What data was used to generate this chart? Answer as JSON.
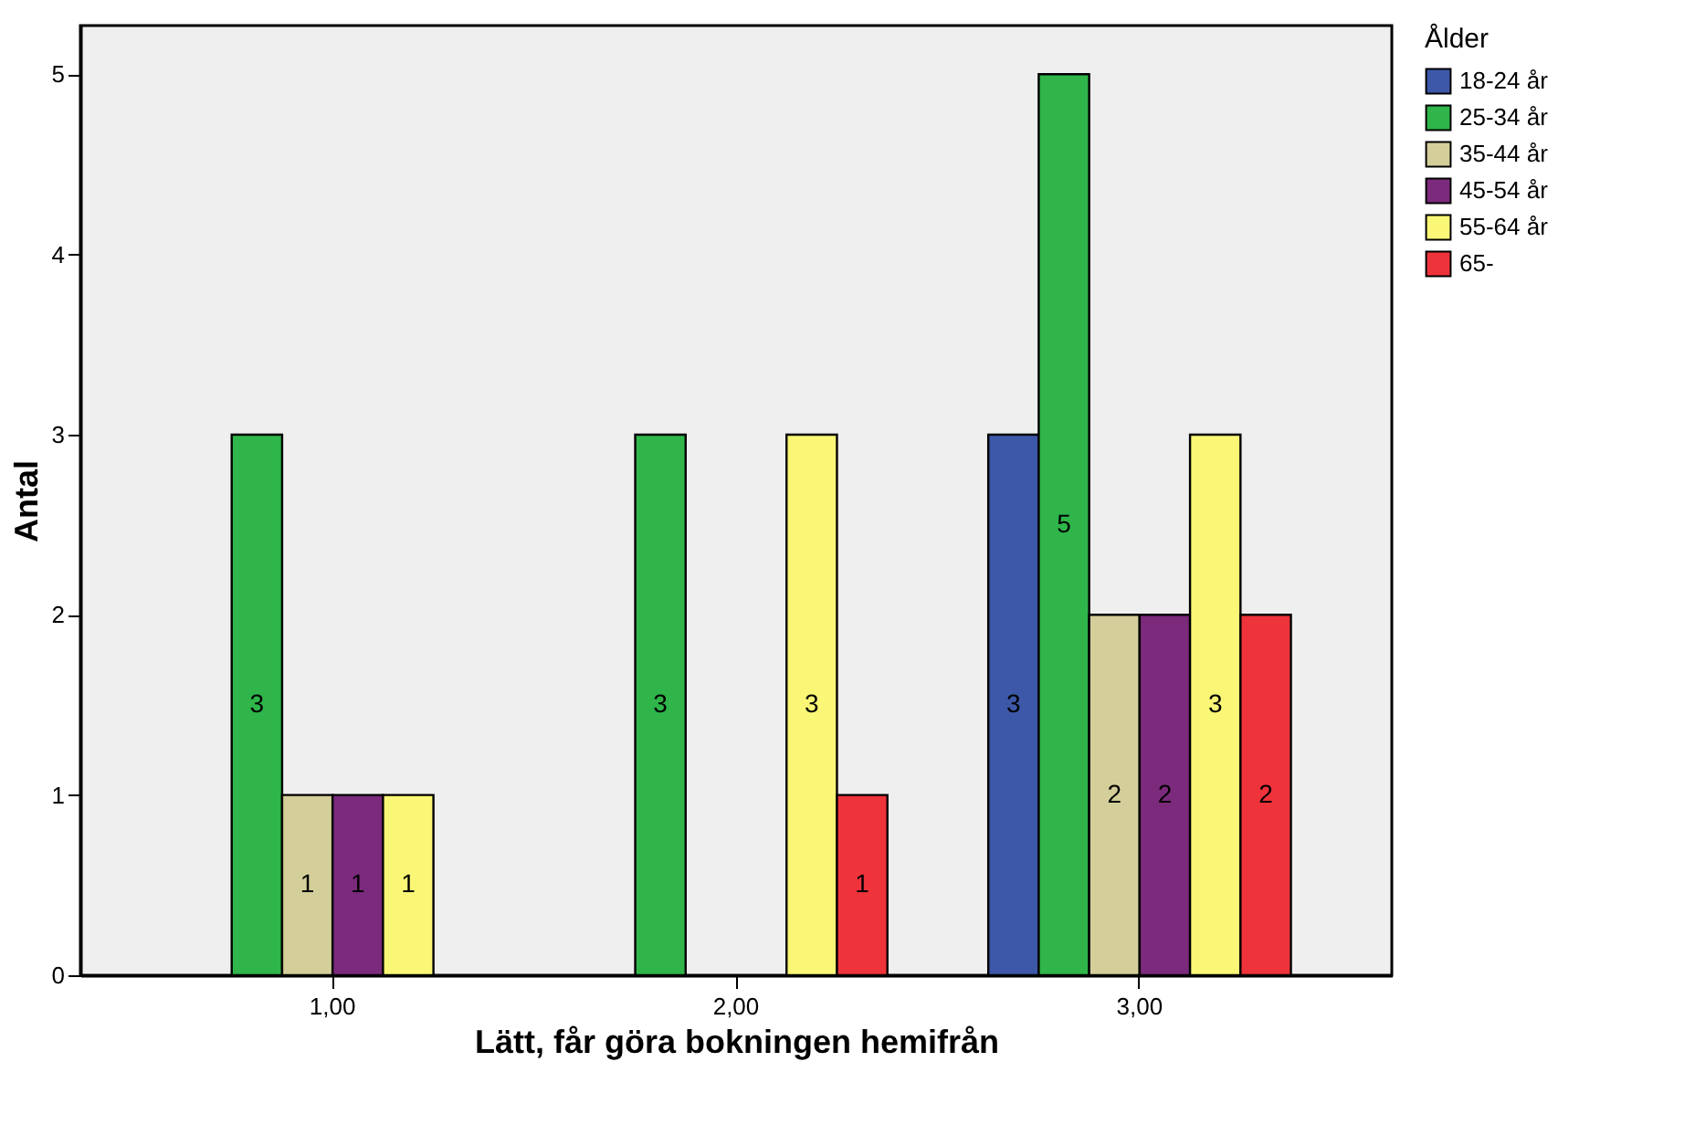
{
  "chart_data": {
    "type": "bar",
    "xlabel": "Lätt, får göra bokningen hemifrån",
    "ylabel": "Antal",
    "legend_title": "Ålder",
    "categories": [
      "1,00",
      "2,00",
      "3,00"
    ],
    "series": [
      {
        "name": "18-24 år",
        "color": "#3d58a8",
        "values": [
          null,
          null,
          3
        ]
      },
      {
        "name": "25-34 år",
        "color": "#2fb54a",
        "values": [
          3,
          3,
          5
        ]
      },
      {
        "name": "35-44 år",
        "color": "#d4ce9a",
        "values": [
          1,
          null,
          2
        ]
      },
      {
        "name": "45-54 år",
        "color": "#7b2a7c",
        "values": [
          1,
          null,
          2
        ]
      },
      {
        "name": "55-64 år",
        "color": "#fbf776",
        "values": [
          1,
          3,
          3
        ]
      },
      {
        "name": "65-",
        "color": "#ef333b",
        "values": [
          null,
          1,
          2
        ]
      }
    ],
    "ylim": [
      0,
      5.27
    ],
    "yticks": [
      0,
      1,
      2,
      3,
      4,
      5
    ],
    "grid": false,
    "legend": "top right",
    "data_labels": true
  }
}
